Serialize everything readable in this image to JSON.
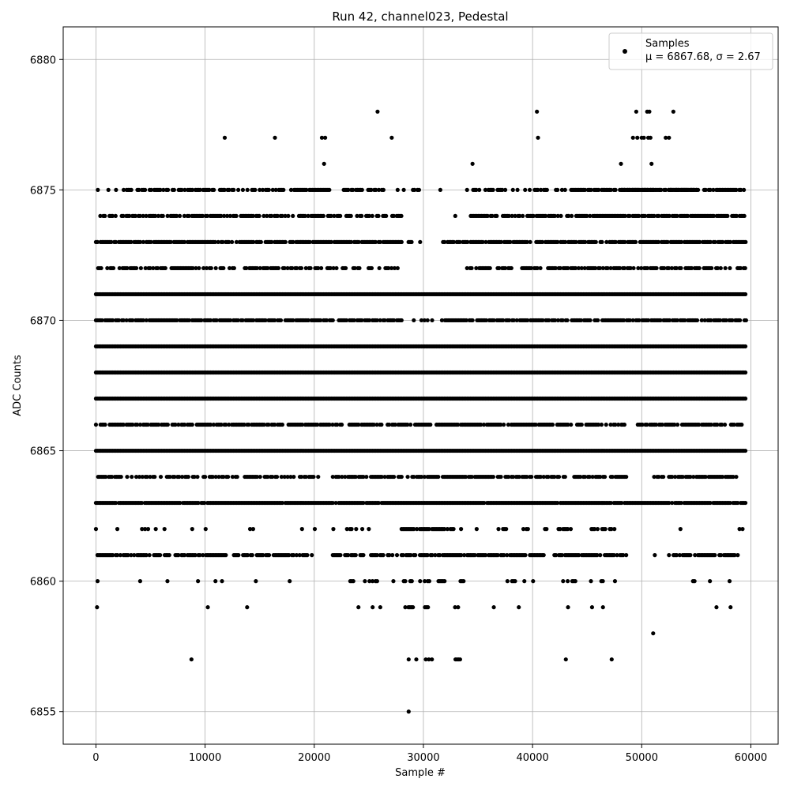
{
  "chart_data": {
    "type": "scatter",
    "title": "Run 42, channel023, Pedestal",
    "xlabel": "Sample #",
    "ylabel": "ADC Counts",
    "xlim": [
      -3000,
      62500
    ],
    "ylim": [
      6853.75,
      6881.25
    ],
    "xticks": [
      0,
      10000,
      20000,
      30000,
      40000,
      50000,
      60000
    ],
    "yticks": [
      6855,
      6860,
      6865,
      6870,
      6875,
      6880
    ],
    "grid": true,
    "legend": {
      "placement": "top-right",
      "label": "Samples",
      "stats": "μ = 6867.68, σ = 2.67"
    },
    "marker_color": "#000000",
    "bands": [
      {
        "y": 6881,
        "segments": []
      },
      {
        "y": 6875,
        "segments": [
          [
            100,
            250,
            0.45
          ],
          [
            1000,
            16000,
            0.6
          ],
          [
            16200,
            21500,
            0.7
          ],
          [
            22000,
            26500,
            0.5
          ],
          [
            27500,
            30000,
            0.3
          ],
          [
            31500,
            31600,
            1
          ],
          [
            34000,
            40000,
            0.5
          ],
          [
            40200,
            41500,
            0.85
          ],
          [
            42000,
            59500,
            0.7
          ],
          [
            48000,
            55000,
            0.9
          ]
        ]
      },
      {
        "y": 6874,
        "segments": [
          [
            400,
            28000,
            0.7
          ],
          [
            32500,
            33000,
            0.6
          ],
          [
            34200,
            59500,
            0.75
          ]
        ]
      },
      {
        "y": 6873,
        "segments": [
          [
            0,
            28000,
            0.85
          ],
          [
            28500,
            29000,
            0.4
          ],
          [
            29700,
            30000,
            0.4
          ],
          [
            31800,
            59600,
            0.85
          ]
        ]
      },
      {
        "y": 6872,
        "segments": [
          [
            200,
            28000,
            0.6
          ],
          [
            34000,
            59500,
            0.65
          ]
        ]
      },
      {
        "y": 6871,
        "segments": [
          [
            0,
            59600,
            1
          ]
        ]
      },
      {
        "y": 6870,
        "segments": [
          [
            0,
            28000,
            0.85
          ],
          [
            28000,
            32000,
            0.25
          ],
          [
            31700,
            59600,
            0.85
          ]
        ]
      },
      {
        "y": 6869,
        "segments": [
          [
            0,
            59600,
            1
          ]
        ]
      },
      {
        "y": 6868,
        "segments": [
          [
            0,
            59600,
            1
          ]
        ]
      },
      {
        "y": 6867,
        "segments": [
          [
            0,
            59600,
            1
          ]
        ]
      },
      {
        "y": 6866,
        "segments": [
          [
            0,
            20000,
            0.7
          ],
          [
            20000,
            48500,
            0.8
          ],
          [
            49500,
            59500,
            0.7
          ]
        ]
      },
      {
        "y": 6865,
        "segments": [
          [
            0,
            59600,
            1
          ]
        ]
      },
      {
        "y": 6864,
        "segments": [
          [
            200,
            20500,
            0.6
          ],
          [
            21700,
            48700,
            0.75
          ],
          [
            51000,
            52000,
            0.5
          ],
          [
            52500,
            58900,
            0.75
          ]
        ]
      },
      {
        "y": 6863,
        "segments": [
          [
            0,
            59600,
            0.95
          ]
        ]
      },
      {
        "y": 6862,
        "segments": [
          [
            0,
            200,
            0.8
          ],
          [
            1400,
            2700,
            0.2
          ],
          [
            3800,
            5500,
            0.3
          ],
          [
            6000,
            6400,
            0.3
          ],
          [
            8400,
            9200,
            0.3
          ],
          [
            10000,
            10100,
            0.3
          ],
          [
            13000,
            14400,
            0.3
          ],
          [
            18600,
            18900,
            0.4
          ],
          [
            20000,
            20100,
            0.3
          ],
          [
            21700,
            21800,
            0.3
          ],
          [
            23000,
            24500,
            0.4
          ],
          [
            25000,
            25500,
            0.3
          ],
          [
            28000,
            32800,
            0.8
          ],
          [
            33400,
            33500,
            0.3
          ],
          [
            34600,
            34900,
            0.4
          ],
          [
            36600,
            37800,
            0.3
          ],
          [
            38600,
            39700,
            0.35
          ],
          [
            41000,
            41300,
            0.4
          ],
          [
            42100,
            43500,
            0.4
          ],
          [
            44700,
            47500,
            0.4
          ],
          [
            53500,
            53600,
            0.3
          ],
          [
            58400,
            59300,
            0.3
          ]
        ]
      },
      {
        "y": 6861,
        "segments": [
          [
            0,
            12000,
            0.75
          ],
          [
            12500,
            20000,
            0.6
          ],
          [
            21700,
            48700,
            0.8
          ],
          [
            51200,
            51700,
            0.5
          ],
          [
            52500,
            58800,
            0.75
          ]
        ]
      },
      {
        "y": 6860,
        "segments": [
          [
            100,
            200,
            1
          ],
          [
            4000,
            4100,
            1
          ],
          [
            6500,
            6600,
            1
          ],
          [
            9300,
            9400,
            1
          ],
          [
            10900,
            11000,
            1
          ],
          [
            11500,
            11600,
            1
          ],
          [
            14600,
            14700,
            1
          ],
          [
            17700,
            17800,
            1
          ],
          [
            23300,
            23600,
            1
          ],
          [
            24500,
            25800,
            0.5
          ],
          [
            27200,
            27300,
            1
          ],
          [
            28200,
            28400,
            1
          ],
          [
            28800,
            29000,
            1
          ],
          [
            29700,
            32000,
            0.5
          ],
          [
            33400,
            34000,
            0.5
          ],
          [
            37700,
            38400,
            0.5
          ],
          [
            39200,
            39300,
            1
          ],
          [
            40000,
            40100,
            1
          ],
          [
            42800,
            44000,
            0.5
          ],
          [
            45300,
            45400,
            1
          ],
          [
            46300,
            46700,
            0.5
          ],
          [
            47500,
            47600,
            1
          ],
          [
            54700,
            55100,
            0.5
          ],
          [
            56200,
            56300,
            1
          ],
          [
            58000,
            58100,
            1
          ]
        ]
      },
      {
        "y": 6859,
        "segments": [
          [
            50,
            150,
            1
          ],
          [
            10200,
            10300,
            1
          ],
          [
            13800,
            13900,
            1
          ],
          [
            24000,
            24100,
            1
          ],
          [
            25300,
            25400,
            1
          ],
          [
            26000,
            26100,
            1
          ],
          [
            28200,
            29200,
            0.5
          ],
          [
            30000,
            30500,
            0.5
          ],
          [
            32900,
            33300,
            0.5
          ],
          [
            36400,
            36500,
            1
          ],
          [
            38600,
            39000,
            0.5
          ],
          [
            43200,
            43300,
            1
          ],
          [
            45400,
            45500,
            1
          ],
          [
            46400,
            46500,
            1
          ],
          [
            56800,
            56900,
            1
          ],
          [
            58000,
            58500,
            0.5
          ]
        ]
      },
      {
        "y": 6858,
        "segments": [
          [
            51000,
            51100,
            1
          ]
        ]
      },
      {
        "y": 6857,
        "segments": [
          [
            8700,
            8800,
            1
          ],
          [
            28600,
            28700,
            1
          ],
          [
            29300,
            29400,
            1
          ],
          [
            29800,
            30800,
            0.6
          ],
          [
            32800,
            33400,
            0.6
          ],
          [
            43000,
            43100,
            1
          ],
          [
            47200,
            47300,
            1
          ]
        ]
      },
      {
        "y": 6856,
        "segments": []
      },
      {
        "y": 6855,
        "segments": [
          [
            28600,
            28700,
            1
          ]
        ]
      }
    ],
    "isolated_points": [
      {
        "x": 11800,
        "y": 6877
      },
      {
        "x": 16400,
        "y": 6877
      },
      {
        "x": 20700,
        "y": 6877
      },
      {
        "x": 21000,
        "y": 6877
      },
      {
        "x": 25800,
        "y": 6878
      },
      {
        "x": 27100,
        "y": 6877
      },
      {
        "x": 20900,
        "y": 6876
      },
      {
        "x": 34500,
        "y": 6876
      },
      {
        "x": 40400,
        "y": 6878
      },
      {
        "x": 40500,
        "y": 6877
      },
      {
        "x": 48100,
        "y": 6876
      },
      {
        "x": 49500,
        "y": 6878
      },
      {
        "x": 50500,
        "y": 6878
      },
      {
        "x": 50700,
        "y": 6878
      },
      {
        "x": 52900,
        "y": 6878
      },
      {
        "x": 49200,
        "y": 6877
      },
      {
        "x": 49600,
        "y": 6877
      },
      {
        "x": 50000,
        "y": 6877
      },
      {
        "x": 50200,
        "y": 6877
      },
      {
        "x": 50600,
        "y": 6877
      },
      {
        "x": 50800,
        "y": 6877
      },
      {
        "x": 52200,
        "y": 6877
      },
      {
        "x": 52500,
        "y": 6877
      },
      {
        "x": 50900,
        "y": 6876
      }
    ]
  }
}
